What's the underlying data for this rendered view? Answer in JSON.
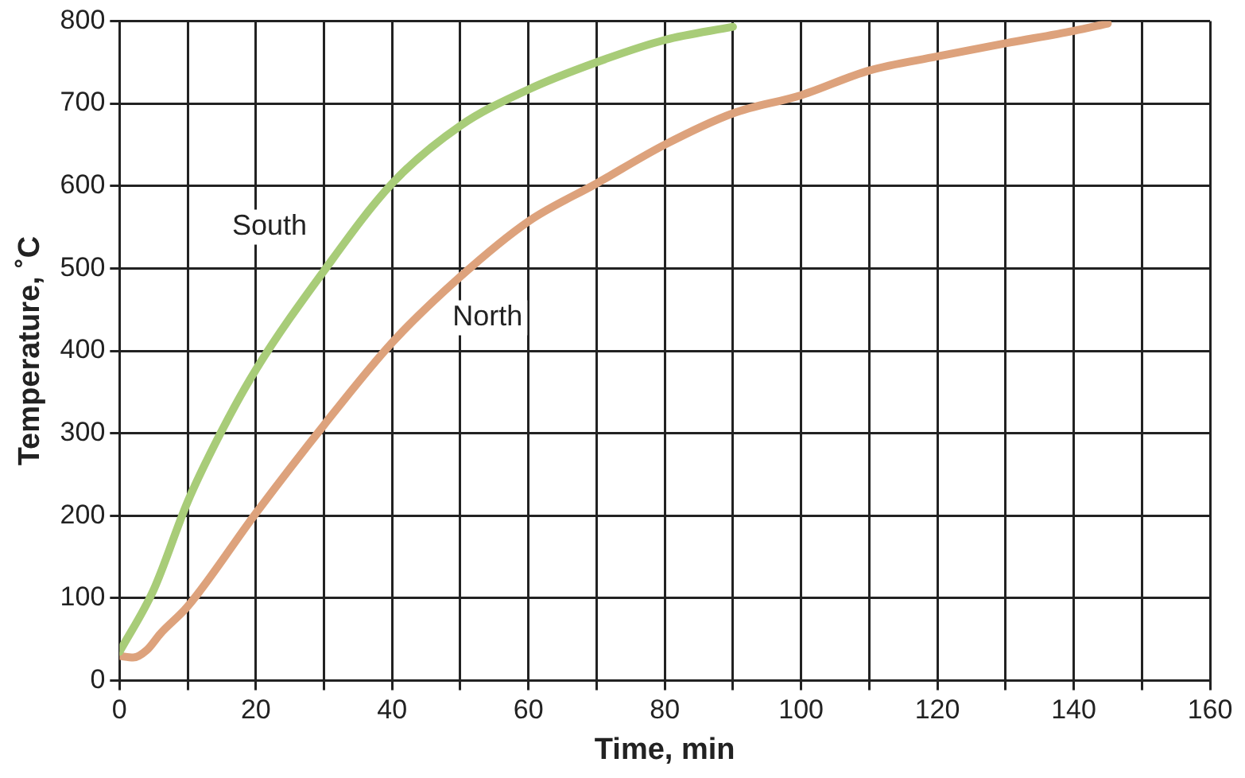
{
  "chart_data": {
    "type": "line",
    "xlabel": "Time, min",
    "ylabel": "Temperature, ˚C",
    "xlim": [
      0,
      160
    ],
    "ylim": [
      0,
      800
    ],
    "xticks": [
      0,
      {
        "value": 10,
        "label": null
      },
      20,
      {
        "value": 30,
        "label": null
      },
      40,
      {
        "value": 50,
        "label": null
      },
      60,
      {
        "value": 70,
        "label": null
      },
      80,
      {
        "value": 90,
        "label": null
      },
      100,
      {
        "value": 110,
        "label": null
      },
      120,
      {
        "value": 130,
        "label": null
      },
      140,
      {
        "value": 150,
        "label": null
      },
      160
    ],
    "yticks": [
      0,
      100,
      200,
      300,
      400,
      500,
      600,
      700,
      800
    ],
    "grid": true,
    "legend": false,
    "marker": "none",
    "line_style": "solid",
    "series": [
      {
        "name": "South",
        "color": "#a8cc78",
        "x": [
          0,
          5,
          10,
          15,
          20,
          30,
          40,
          50,
          60,
          70,
          80,
          90
        ],
        "values": [
          35,
          110,
          217,
          303,
          377,
          497,
          603,
          673,
          717,
          750,
          777,
          793
        ]
      },
      {
        "name": "North",
        "color": "#dda27c",
        "x": [
          0,
          2,
          4,
          6,
          10,
          20,
          30,
          40,
          50,
          60,
          70,
          80,
          90,
          100,
          110,
          120,
          130,
          140,
          145
        ],
        "values": [
          30,
          28,
          37,
          57,
          90,
          203,
          310,
          410,
          490,
          557,
          603,
          650,
          688,
          710,
          740,
          757,
          773,
          788,
          797
        ]
      }
    ]
  }
}
